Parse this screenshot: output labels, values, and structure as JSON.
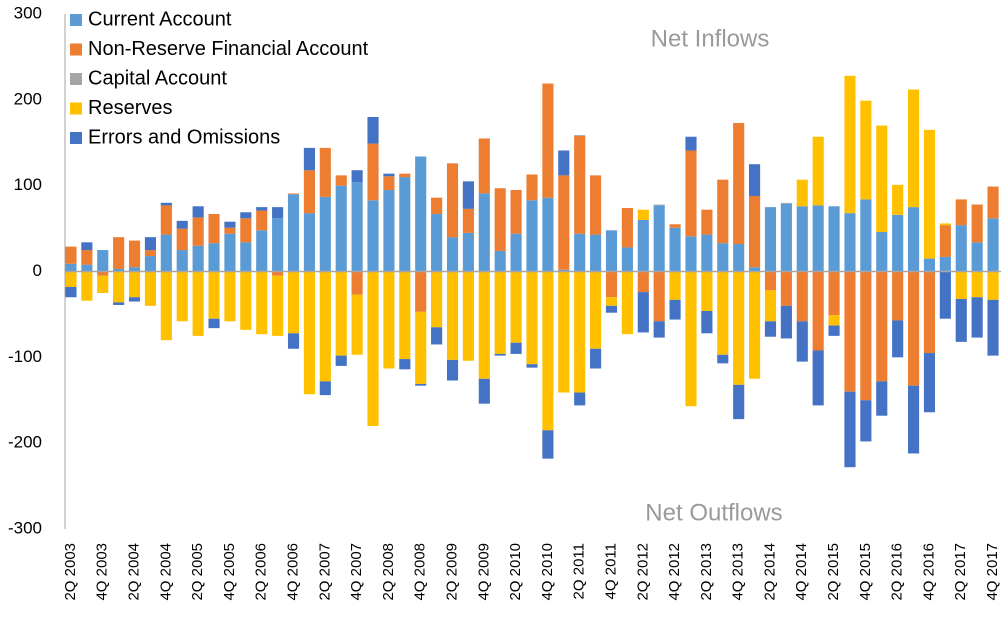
{
  "chart_data": {
    "type": "bar",
    "stacked": true,
    "annotations": [
      "Net Inflows",
      "Net Outflows"
    ],
    "categories": [
      "2Q 2003",
      null,
      "4Q 2003",
      null,
      "2Q 2004",
      null,
      "4Q 2004",
      null,
      "2Q 2005",
      null,
      "4Q 2005",
      null,
      "2Q 2006",
      null,
      "4Q 2006",
      null,
      "2Q 2007",
      null,
      "4Q 2007",
      null,
      "2Q 2008",
      null,
      "4Q 2008",
      null,
      "2Q 2009",
      null,
      "4Q 2009",
      null,
      "2Q 2010",
      null,
      "4Q 2010",
      null,
      "2Q 2011",
      null,
      "4Q 2011",
      null,
      "2Q 2012",
      null,
      "4Q 2012",
      null,
      "2Q 2013",
      null,
      "4Q 2013",
      null,
      "2Q 2014",
      null,
      "4Q 2014",
      null,
      "2Q 2015",
      null,
      "4Q 2015",
      null,
      "2Q 2016",
      null,
      "4Q 2016",
      null,
      "2Q 2017",
      null,
      "4Q 2017"
    ],
    "series": [
      {
        "name": "Current Account",
        "color": "#5b9bd5",
        "values": [
          9,
          8,
          25,
          3,
          5,
          18,
          43,
          25,
          30,
          33,
          44,
          34,
          48,
          62,
          90,
          68,
          87,
          100,
          104,
          83,
          95,
          110,
          134,
          67,
          40,
          45,
          91,
          24,
          44,
          83,
          86,
          2,
          44,
          43,
          48,
          28,
          60,
          77,
          51,
          41,
          43,
          33,
          32,
          5,
          75,
          79,
          76,
          77,
          76,
          68,
          84,
          46,
          66,
          75,
          15,
          17,
          54,
          34,
          62
        ]
      },
      {
        "name": "Non-Reserve Financial Account",
        "color": "#ed7d31",
        "values": [
          20,
          17,
          -5,
          37,
          31,
          7,
          34,
          25,
          33,
          34,
          7,
          28,
          23,
          -5,
          1,
          50,
          57,
          12,
          -27,
          66,
          16,
          4,
          -47,
          19,
          86,
          28,
          64,
          73,
          51,
          30,
          133,
          110,
          114,
          69,
          -30,
          46,
          -24,
          -58,
          4,
          100,
          29,
          74,
          141,
          83,
          -22,
          -40,
          -58,
          -92,
          -51,
          -140,
          -150,
          -128,
          -57,
          -133,
          -95,
          37,
          30,
          44,
          37
        ]
      },
      {
        "name": "Capital Account",
        "color": "#a5a5a5",
        "values": [
          0,
          0,
          0,
          0,
          0,
          0,
          0,
          0,
          0,
          0,
          0,
          0,
          0,
          0,
          0,
          0,
          0,
          0,
          0,
          0,
          0,
          0,
          0,
          0,
          0,
          0,
          0,
          0,
          0,
          0,
          0,
          0,
          1,
          0,
          0,
          0,
          0,
          1,
          0,
          0,
          0,
          0,
          0,
          0,
          0,
          1,
          0,
          0,
          0,
          0,
          0,
          0,
          0,
          0,
          0,
          0,
          0,
          0,
          0
        ]
      },
      {
        "name": "Reserves",
        "color": "#ffc000",
        "values": [
          -18,
          -34,
          -20,
          -36,
          -30,
          -40,
          -80,
          -58,
          -75,
          -55,
          -58,
          -68,
          -73,
          -70,
          -72,
          -143,
          -128,
          -98,
          -70,
          -180,
          -113,
          -102,
          -84,
          -65,
          -103,
          -104,
          -125,
          -96,
          -83,
          -108,
          -185,
          -141,
          -141,
          -90,
          -10,
          -73,
          12,
          0,
          -33,
          -157,
          -46,
          -97,
          -132,
          -125,
          -36,
          0,
          31,
          80,
          -12,
          160,
          115,
          124,
          35,
          137,
          150,
          2,
          -32,
          -30,
          -33
        ]
      },
      {
        "name": "Errors and Omissions",
        "color": "#4472c4",
        "values": [
          -12,
          9,
          0,
          -3,
          -5,
          15,
          3,
          9,
          13,
          -11,
          7,
          7,
          4,
          13,
          -18,
          26,
          -16,
          -12,
          14,
          31,
          3,
          -12,
          -2,
          -20,
          -24,
          32,
          -29,
          -2,
          -13,
          -4,
          -33,
          29,
          -15,
          -23,
          -8,
          0,
          -47,
          -19,
          -23,
          16,
          -26,
          -10,
          -40,
          37,
          -18,
          -38,
          -47,
          -64,
          -12,
          -88,
          -48,
          -40,
          -43,
          -79,
          -69,
          -55,
          -50,
          -47,
          -65
        ]
      }
    ],
    "ylim": [
      -300,
      300
    ],
    "yticks": [
      300,
      200,
      100,
      0,
      -100,
      -200,
      -300
    ],
    "grid": false,
    "legend": "top-left"
  }
}
